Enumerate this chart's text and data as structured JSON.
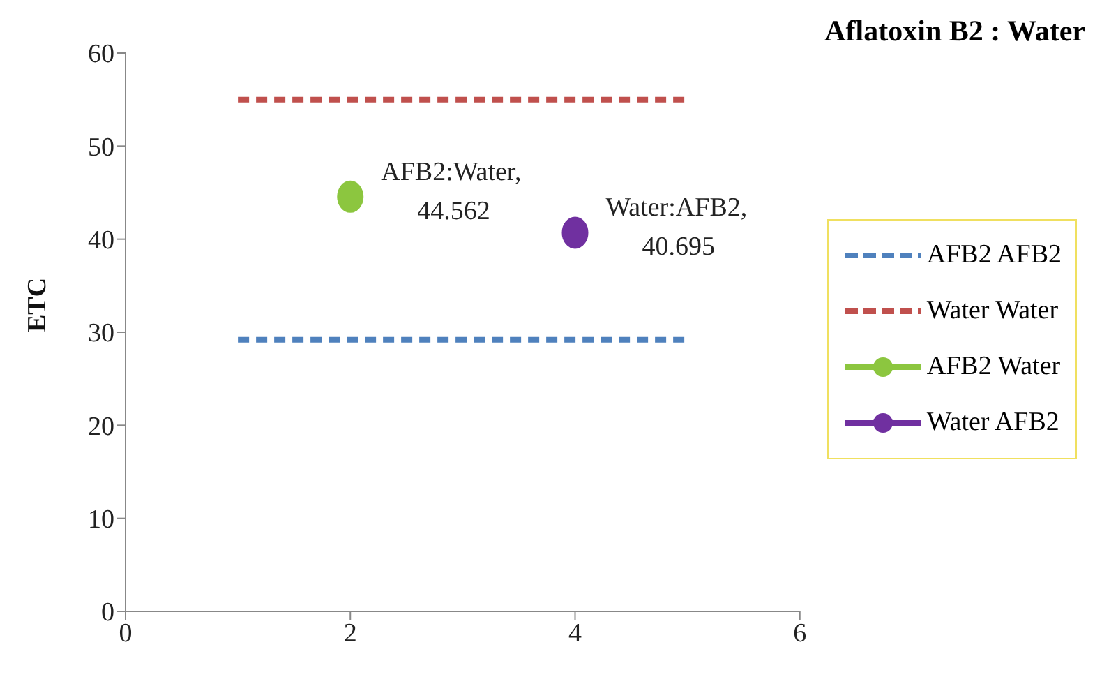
{
  "chart_data": {
    "type": "line",
    "title": "Aflatoxin B2 : Water",
    "ylabel": "ETC",
    "xlim": [
      0,
      6
    ],
    "xticks": [
      0,
      2,
      4,
      6
    ],
    "ylim": [
      0,
      60
    ],
    "yticks": [
      0,
      10,
      20,
      30,
      40,
      50,
      60
    ],
    "grid": false,
    "legend": "right",
    "series": [
      {
        "name": "AFB2 AFB2",
        "color": "#4f81bd",
        "x": [
          1,
          5
        ],
        "values": [
          29.2,
          29.2
        ],
        "line_style": "dashed",
        "marker": "none"
      },
      {
        "name": "Water Water",
        "color": "#c0504d",
        "x": [
          1,
          5
        ],
        "values": [
          55,
          55
        ],
        "line_style": "dashed",
        "marker": "none"
      },
      {
        "name": "AFB2 Water",
        "color": "#8cc63f",
        "x": [
          2
        ],
        "values": [
          44.562
        ],
        "line_style": "solid",
        "marker": "circle"
      },
      {
        "name": "Water AFB2",
        "color": "#7030a0",
        "x": [
          4
        ],
        "values": [
          40.695
        ],
        "line_style": "solid",
        "marker": "circle"
      }
    ],
    "annotations": [
      {
        "text": "AFB2:Water, 44.562",
        "x": 2,
        "y": 44.562
      },
      {
        "text": "Water:AFB2, 40.695",
        "x": 4,
        "y": 40.695
      }
    ]
  }
}
